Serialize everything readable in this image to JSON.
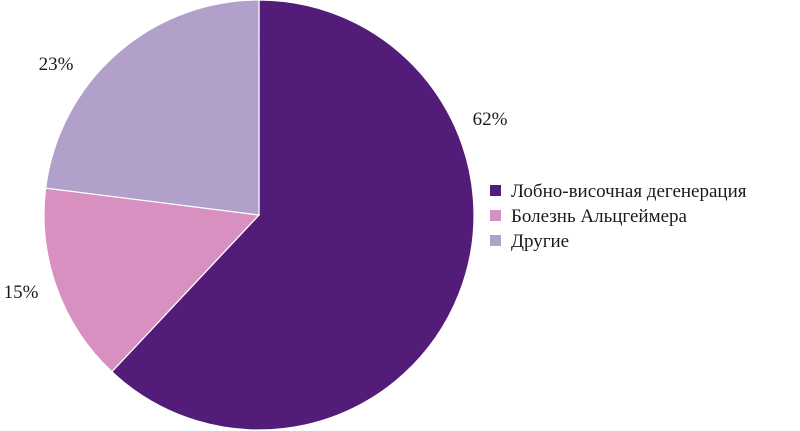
{
  "chart_data": {
    "type": "pie",
    "categories": [
      "Лобно-височная дегенерация",
      "Болезнь Альцгеймера",
      "Другие"
    ],
    "values": [
      62,
      15,
      23
    ],
    "value_labels": [
      "62%",
      "15%",
      "23%"
    ],
    "colors": [
      "#521c78",
      "#d890c0",
      "#b0a0ca"
    ],
    "start": "12 o'clock",
    "direction": "clockwise",
    "legend_position": "right"
  }
}
